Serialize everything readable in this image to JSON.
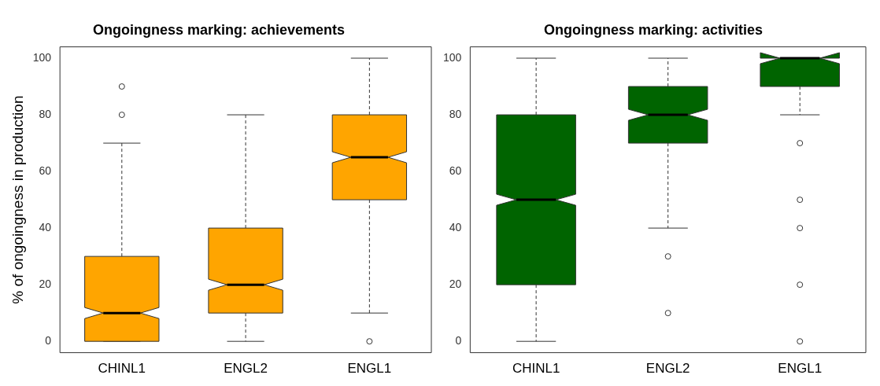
{
  "chart_data": [
    {
      "type": "box",
      "title": "Ongoingness marking: achievements",
      "ylabel": "% of ongoingness in production",
      "categories": [
        "CHINL1",
        "ENGL2",
        "ENGL1"
      ],
      "color": "#ffa500",
      "ylim": [
        -4,
        104
      ],
      "yticks": [
        0,
        20,
        40,
        60,
        80,
        100
      ],
      "boxes": [
        {
          "low": 0,
          "q1": 0,
          "median": 10,
          "q3": 30,
          "high": 70,
          "outliers": [
            80,
            90
          ]
        },
        {
          "low": 0,
          "q1": 10,
          "median": 20,
          "q3": 40,
          "high": 80
        },
        {
          "low": 10,
          "q1": 50,
          "median": 65,
          "q3": 80,
          "high": 100,
          "outliers": [
            0
          ]
        }
      ]
    },
    {
      "type": "box",
      "title": "Ongoingness marking: activities",
      "categories": [
        "CHINL1",
        "ENGL2",
        "ENGL1"
      ],
      "color": "#006400",
      "ylim": [
        -4,
        104
      ],
      "yticks": [
        0,
        20,
        40,
        60,
        80,
        100
      ],
      "boxes": [
        {
          "low": 0,
          "q1": 20,
          "median": 50,
          "q3": 80,
          "high": 100
        },
        {
          "low": 40,
          "q1": 70,
          "median": 80,
          "q3": 90,
          "high": 100,
          "outliers": [
            30,
            10
          ]
        },
        {
          "low": 80,
          "q1": 90,
          "median": 100,
          "q3": 100,
          "high": 100,
          "outliers": [
            70,
            50,
            40,
            20,
            0
          ]
        }
      ]
    }
  ]
}
